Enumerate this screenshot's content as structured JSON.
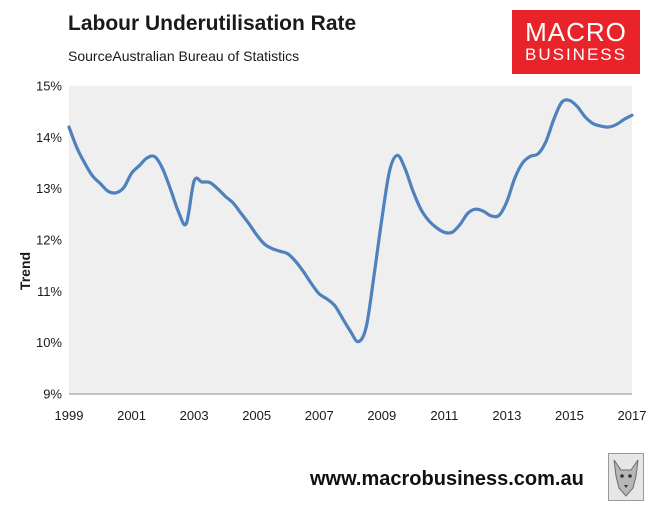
{
  "header": {
    "title": "Labour Underutilisation Rate",
    "subtitle": "SourceAustralian Bureau of Statistics"
  },
  "brand": {
    "line1": "MACRO",
    "line2": "BUSINESS",
    "color": "#e8232a"
  },
  "footer": {
    "url": "www.macrobusiness.com.au"
  },
  "chart_data": {
    "type": "line",
    "title": "Labour Underutilisation Rate",
    "ylabel": "Trend",
    "xlabel": "",
    "xlim": [
      1999,
      2017
    ],
    "ylim": [
      9,
      15
    ],
    "x_ticks": [
      "1999",
      "2001",
      "2003",
      "2005",
      "2007",
      "2009",
      "2011",
      "2013",
      "2015",
      "2017"
    ],
    "y_ticks": [
      "9%",
      "10%",
      "11%",
      "12%",
      "13%",
      "14%",
      "15%"
    ],
    "grid": false,
    "plot_background": "#efefef",
    "line_color": "#4f81bd",
    "series": [
      {
        "x": [
          1999.0,
          1999.25,
          1999.5,
          1999.75,
          2000.0,
          2000.25,
          2000.5,
          2000.75,
          2001.0,
          2001.25,
          2001.5,
          2001.75,
          2002.0,
          2002.25,
          2002.5,
          2002.75,
          2003.0,
          2003.25,
          2003.5,
          2003.75,
          2004.0,
          2004.25,
          2004.5,
          2004.75,
          2005.0,
          2005.25,
          2005.5,
          2005.75,
          2006.0,
          2006.25,
          2006.5,
          2006.75,
          2007.0,
          2007.25,
          2007.5,
          2007.75,
          2008.0,
          2008.25,
          2008.5,
          2008.75,
          2009.0,
          2009.25,
          2009.5,
          2009.75,
          2010.0,
          2010.25,
          2010.5,
          2010.75,
          2011.0,
          2011.25,
          2011.5,
          2011.75,
          2012.0,
          2012.25,
          2012.5,
          2012.75,
          2013.0,
          2013.25,
          2013.5,
          2013.75,
          2014.0,
          2014.25,
          2014.5,
          2014.75,
          2015.0,
          2015.25,
          2015.5,
          2015.75,
          2016.0,
          2016.25,
          2016.5,
          2016.75,
          2017.0
        ],
        "values": [
          14.2,
          13.8,
          13.5,
          13.25,
          13.1,
          12.95,
          12.92,
          13.02,
          13.3,
          13.45,
          13.6,
          13.62,
          13.38,
          12.98,
          12.55,
          12.32,
          13.15,
          13.13,
          13.12,
          13.0,
          12.85,
          12.72,
          12.52,
          12.32,
          12.1,
          11.92,
          11.83,
          11.78,
          11.73,
          11.58,
          11.38,
          11.15,
          10.95,
          10.85,
          10.72,
          10.47,
          10.22,
          10.02,
          10.3,
          11.3,
          12.4,
          13.35,
          13.65,
          13.38,
          12.95,
          12.6,
          12.38,
          12.24,
          12.15,
          12.15,
          12.3,
          12.52,
          12.6,
          12.56,
          12.47,
          12.48,
          12.75,
          13.2,
          13.5,
          13.63,
          13.68,
          13.92,
          14.35,
          14.68,
          14.72,
          14.6,
          14.4,
          14.27,
          14.22,
          14.2,
          14.25,
          14.35,
          14.43
        ]
      }
    ]
  }
}
